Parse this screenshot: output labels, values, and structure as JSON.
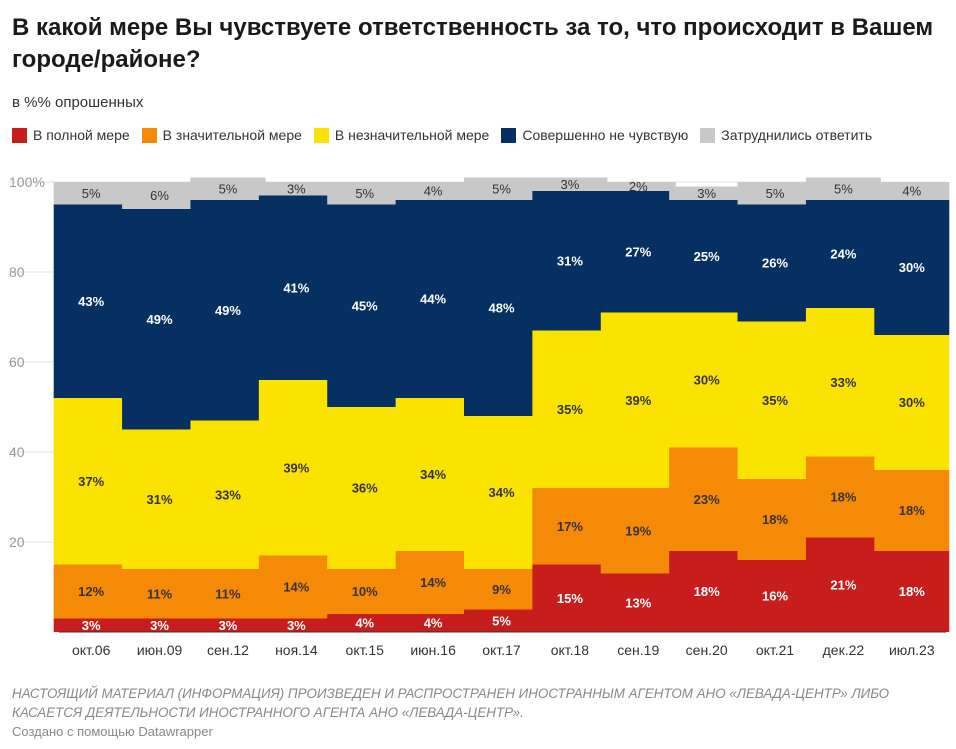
{
  "header": {
    "title": "В какой мере Вы чувствуете ответственность за то, что происходит в Вашем городе/районе?",
    "subtitle": "в %% опрошенных"
  },
  "footer": {
    "notice": "НАСТОЯЩИЙ МАТЕРИАЛ (ИНФОРМАЦИЯ) ПРОИЗВЕДЕН И РАСПРОСТРАНЕН ИНОСТРАННЫМ АГЕНТОМ АНО «ЛЕВАДА-ЦЕНТР» ЛИБО КАСАЕТСЯ ДЕЯТЕЛЬНОСТИ ИНОСТРАННОГО АГЕНТА АНО «ЛЕВАДА-ЦЕНТР».",
    "credit": "Создано с помощью Datawrapper"
  },
  "chart_data": {
    "type": "bar",
    "stacked": true,
    "title": "В какой мере Вы чувствуете ответственность за то, что происходит в Вашем городе/районе?",
    "subtitle": "в %% опрошенных",
    "xlabel": "",
    "ylabel": "",
    "ylim": [
      0,
      100
    ],
    "yticks": [
      20,
      40,
      60,
      80,
      100
    ],
    "ytick_labels": [
      "20",
      "40",
      "60",
      "80",
      "100%"
    ],
    "grid": true,
    "legend_position": "top",
    "categories": [
      "окт.06",
      "июн.09",
      "сен.12",
      "ноя.14",
      "окт.15",
      "июн.16",
      "окт.17",
      "окт.18",
      "сен.19",
      "сен.20",
      "окт.21",
      "дек.22",
      "июл.23"
    ],
    "series": [
      {
        "name": "В полной мере",
        "color": "#c71e1d",
        "values": [
          3,
          3,
          3,
          3,
          4,
          4,
          5,
          15,
          13,
          18,
          16,
          21,
          18
        ]
      },
      {
        "name": "В значительной мере",
        "color": "#f58a07",
        "values": [
          12,
          11,
          11,
          14,
          10,
          14,
          9,
          17,
          19,
          23,
          18,
          18,
          18
        ]
      },
      {
        "name": "В незначительной мере",
        "color": "#fae300",
        "values": [
          37,
          31,
          33,
          39,
          36,
          34,
          34,
          35,
          39,
          30,
          35,
          33,
          30
        ]
      },
      {
        "name": "Совершенно не чувствую",
        "color": "#053061",
        "values": [
          43,
          49,
          49,
          41,
          45,
          44,
          48,
          31,
          27,
          25,
          26,
          24,
          30
        ]
      },
      {
        "name": "Затруднились ответить",
        "color": "#c8c8c8",
        "values": [
          5,
          6,
          5,
          3,
          5,
          4,
          5,
          3,
          2,
          3,
          5,
          5,
          4
        ]
      }
    ]
  }
}
